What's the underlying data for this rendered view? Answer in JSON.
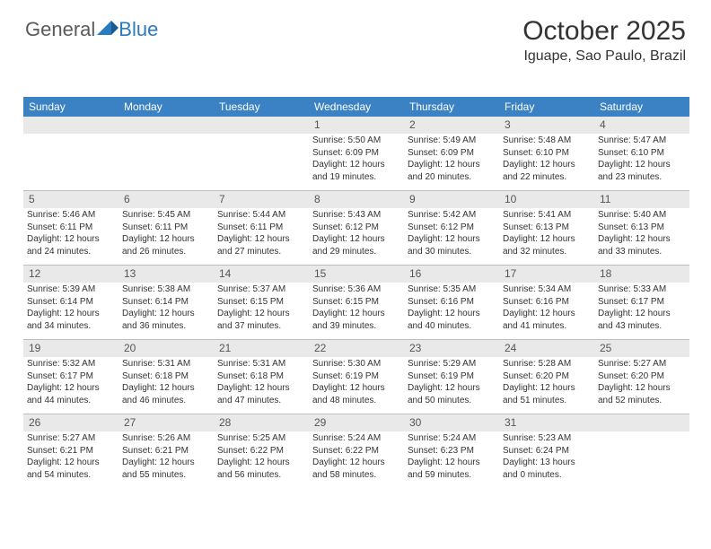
{
  "logo": {
    "text1": "General",
    "text2": "Blue"
  },
  "header": {
    "title": "October 2025",
    "location": "Iguape, Sao Paulo, Brazil"
  },
  "colors": {
    "header_bg": "#3b82c4",
    "daynum_bg": "#e9e9e9",
    "border": "#bfbfbf",
    "logo_blue": "#2b7bbf"
  },
  "day_names": [
    "Sunday",
    "Monday",
    "Tuesday",
    "Wednesday",
    "Thursday",
    "Friday",
    "Saturday"
  ],
  "weeks": [
    [
      null,
      null,
      null,
      {
        "n": "1",
        "sr": "Sunrise: 5:50 AM",
        "ss": "Sunset: 6:09 PM",
        "dl1": "Daylight: 12 hours",
        "dl2": "and 19 minutes."
      },
      {
        "n": "2",
        "sr": "Sunrise: 5:49 AM",
        "ss": "Sunset: 6:09 PM",
        "dl1": "Daylight: 12 hours",
        "dl2": "and 20 minutes."
      },
      {
        "n": "3",
        "sr": "Sunrise: 5:48 AM",
        "ss": "Sunset: 6:10 PM",
        "dl1": "Daylight: 12 hours",
        "dl2": "and 22 minutes."
      },
      {
        "n": "4",
        "sr": "Sunrise: 5:47 AM",
        "ss": "Sunset: 6:10 PM",
        "dl1": "Daylight: 12 hours",
        "dl2": "and 23 minutes."
      }
    ],
    [
      {
        "n": "5",
        "sr": "Sunrise: 5:46 AM",
        "ss": "Sunset: 6:11 PM",
        "dl1": "Daylight: 12 hours",
        "dl2": "and 24 minutes."
      },
      {
        "n": "6",
        "sr": "Sunrise: 5:45 AM",
        "ss": "Sunset: 6:11 PM",
        "dl1": "Daylight: 12 hours",
        "dl2": "and 26 minutes."
      },
      {
        "n": "7",
        "sr": "Sunrise: 5:44 AM",
        "ss": "Sunset: 6:11 PM",
        "dl1": "Daylight: 12 hours",
        "dl2": "and 27 minutes."
      },
      {
        "n": "8",
        "sr": "Sunrise: 5:43 AM",
        "ss": "Sunset: 6:12 PM",
        "dl1": "Daylight: 12 hours",
        "dl2": "and 29 minutes."
      },
      {
        "n": "9",
        "sr": "Sunrise: 5:42 AM",
        "ss": "Sunset: 6:12 PM",
        "dl1": "Daylight: 12 hours",
        "dl2": "and 30 minutes."
      },
      {
        "n": "10",
        "sr": "Sunrise: 5:41 AM",
        "ss": "Sunset: 6:13 PM",
        "dl1": "Daylight: 12 hours",
        "dl2": "and 32 minutes."
      },
      {
        "n": "11",
        "sr": "Sunrise: 5:40 AM",
        "ss": "Sunset: 6:13 PM",
        "dl1": "Daylight: 12 hours",
        "dl2": "and 33 minutes."
      }
    ],
    [
      {
        "n": "12",
        "sr": "Sunrise: 5:39 AM",
        "ss": "Sunset: 6:14 PM",
        "dl1": "Daylight: 12 hours",
        "dl2": "and 34 minutes."
      },
      {
        "n": "13",
        "sr": "Sunrise: 5:38 AM",
        "ss": "Sunset: 6:14 PM",
        "dl1": "Daylight: 12 hours",
        "dl2": "and 36 minutes."
      },
      {
        "n": "14",
        "sr": "Sunrise: 5:37 AM",
        "ss": "Sunset: 6:15 PM",
        "dl1": "Daylight: 12 hours",
        "dl2": "and 37 minutes."
      },
      {
        "n": "15",
        "sr": "Sunrise: 5:36 AM",
        "ss": "Sunset: 6:15 PM",
        "dl1": "Daylight: 12 hours",
        "dl2": "and 39 minutes."
      },
      {
        "n": "16",
        "sr": "Sunrise: 5:35 AM",
        "ss": "Sunset: 6:16 PM",
        "dl1": "Daylight: 12 hours",
        "dl2": "and 40 minutes."
      },
      {
        "n": "17",
        "sr": "Sunrise: 5:34 AM",
        "ss": "Sunset: 6:16 PM",
        "dl1": "Daylight: 12 hours",
        "dl2": "and 41 minutes."
      },
      {
        "n": "18",
        "sr": "Sunrise: 5:33 AM",
        "ss": "Sunset: 6:17 PM",
        "dl1": "Daylight: 12 hours",
        "dl2": "and 43 minutes."
      }
    ],
    [
      {
        "n": "19",
        "sr": "Sunrise: 5:32 AM",
        "ss": "Sunset: 6:17 PM",
        "dl1": "Daylight: 12 hours",
        "dl2": "and 44 minutes."
      },
      {
        "n": "20",
        "sr": "Sunrise: 5:31 AM",
        "ss": "Sunset: 6:18 PM",
        "dl1": "Daylight: 12 hours",
        "dl2": "and 46 minutes."
      },
      {
        "n": "21",
        "sr": "Sunrise: 5:31 AM",
        "ss": "Sunset: 6:18 PM",
        "dl1": "Daylight: 12 hours",
        "dl2": "and 47 minutes."
      },
      {
        "n": "22",
        "sr": "Sunrise: 5:30 AM",
        "ss": "Sunset: 6:19 PM",
        "dl1": "Daylight: 12 hours",
        "dl2": "and 48 minutes."
      },
      {
        "n": "23",
        "sr": "Sunrise: 5:29 AM",
        "ss": "Sunset: 6:19 PM",
        "dl1": "Daylight: 12 hours",
        "dl2": "and 50 minutes."
      },
      {
        "n": "24",
        "sr": "Sunrise: 5:28 AM",
        "ss": "Sunset: 6:20 PM",
        "dl1": "Daylight: 12 hours",
        "dl2": "and 51 minutes."
      },
      {
        "n": "25",
        "sr": "Sunrise: 5:27 AM",
        "ss": "Sunset: 6:20 PM",
        "dl1": "Daylight: 12 hours",
        "dl2": "and 52 minutes."
      }
    ],
    [
      {
        "n": "26",
        "sr": "Sunrise: 5:27 AM",
        "ss": "Sunset: 6:21 PM",
        "dl1": "Daylight: 12 hours",
        "dl2": "and 54 minutes."
      },
      {
        "n": "27",
        "sr": "Sunrise: 5:26 AM",
        "ss": "Sunset: 6:21 PM",
        "dl1": "Daylight: 12 hours",
        "dl2": "and 55 minutes."
      },
      {
        "n": "28",
        "sr": "Sunrise: 5:25 AM",
        "ss": "Sunset: 6:22 PM",
        "dl1": "Daylight: 12 hours",
        "dl2": "and 56 minutes."
      },
      {
        "n": "29",
        "sr": "Sunrise: 5:24 AM",
        "ss": "Sunset: 6:22 PM",
        "dl1": "Daylight: 12 hours",
        "dl2": "and 58 minutes."
      },
      {
        "n": "30",
        "sr": "Sunrise: 5:24 AM",
        "ss": "Sunset: 6:23 PM",
        "dl1": "Daylight: 12 hours",
        "dl2": "and 59 minutes."
      },
      {
        "n": "31",
        "sr": "Sunrise: 5:23 AM",
        "ss": "Sunset: 6:24 PM",
        "dl1": "Daylight: 13 hours",
        "dl2": "and 0 minutes."
      },
      null
    ]
  ]
}
